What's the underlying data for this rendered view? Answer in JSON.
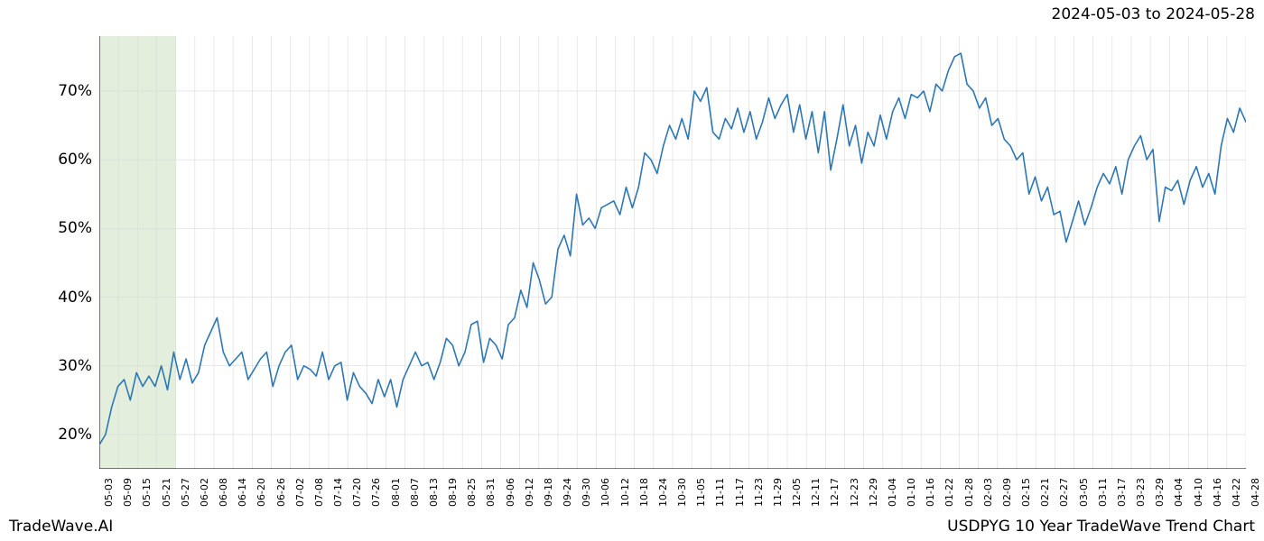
{
  "header": {
    "date_range": "2024-05-03 to 2024-05-28"
  },
  "footer": {
    "left": "TradeWave.AI",
    "right": "USDPYG 10 Year TradeWave Trend Chart"
  },
  "chart": {
    "type": "line",
    "background_color": "#ffffff",
    "grid_color": "#d9d9d9",
    "axis_color": "#000000",
    "line_color": "#2e77b4",
    "line_width": 1.6,
    "highlight_band": {
      "x_start_index": 0,
      "x_end_index": 4,
      "fill_color": "#e3efdc",
      "opacity": 1.0
    },
    "y_axis": {
      "min": 15,
      "max": 78,
      "ticks": [
        20,
        30,
        40,
        50,
        60,
        70
      ],
      "tick_labels": [
        "20%",
        "30%",
        "40%",
        "50%",
        "60%",
        "70%"
      ],
      "fontsize": 17
    },
    "x_axis": {
      "labels": [
        "05-03",
        "05-09",
        "05-15",
        "05-21",
        "05-27",
        "06-02",
        "06-08",
        "06-14",
        "06-20",
        "06-26",
        "07-02",
        "07-08",
        "07-14",
        "07-20",
        "07-26",
        "08-01",
        "08-07",
        "08-13",
        "08-19",
        "08-25",
        "08-31",
        "09-06",
        "09-12",
        "09-18",
        "09-24",
        "09-30",
        "10-06",
        "10-12",
        "10-18",
        "10-24",
        "10-30",
        "11-05",
        "11-11",
        "11-17",
        "11-23",
        "11-29",
        "12-05",
        "12-11",
        "12-17",
        "12-23",
        "12-29",
        "01-04",
        "01-10",
        "01-16",
        "01-22",
        "01-28",
        "02-03",
        "02-09",
        "02-15",
        "02-21",
        "02-27",
        "03-05",
        "03-11",
        "03-17",
        "03-23",
        "03-29",
        "04-04",
        "04-10",
        "04-16",
        "04-22",
        "04-28"
      ],
      "fontsize": 11,
      "rotation": -90
    },
    "series": {
      "name": "trend",
      "values": [
        18.5,
        20,
        24,
        27,
        28,
        25,
        29,
        27,
        28.5,
        27,
        30,
        26.5,
        32,
        28,
        31,
        27.5,
        29,
        33,
        35,
        37,
        32,
        30,
        31,
        32,
        28,
        29.5,
        31,
        32,
        27,
        30,
        32,
        33,
        28,
        30,
        29.5,
        28.5,
        32,
        28,
        30,
        30.5,
        25,
        29,
        27,
        26,
        24.5,
        28,
        25.5,
        28,
        24,
        28,
        30,
        32,
        30,
        30.5,
        28,
        30.5,
        34,
        33,
        30,
        32,
        36,
        36.5,
        30.5,
        34,
        33,
        31,
        36,
        37,
        41,
        38.5,
        45,
        42.5,
        39,
        40,
        47,
        49,
        46,
        55,
        50.5,
        51.5,
        50,
        53,
        53.5,
        54,
        52,
        56,
        53,
        56,
        61,
        60,
        58,
        62,
        65,
        63,
        66,
        63,
        70,
        68.5,
        70.5,
        64,
        63,
        66,
        64.5,
        67.5,
        64,
        67,
        63,
        65.5,
        69,
        66,
        68,
        69.5,
        64,
        68,
        63,
        67,
        61,
        67,
        58.5,
        63,
        68,
        62,
        65,
        59.5,
        64,
        62,
        66.5,
        63,
        67,
        69,
        66,
        69.5,
        69,
        70,
        67,
        71,
        70,
        73,
        75,
        75.5,
        71,
        70,
        67.5,
        69,
        65,
        66,
        63,
        62,
        60,
        61,
        55,
        57.5,
        54,
        56,
        52,
        52.5,
        48,
        51,
        54,
        50.5,
        53,
        56,
        58,
        56.5,
        59,
        55,
        60,
        62,
        63.5,
        60,
        61.5,
        51,
        56,
        55.5,
        57,
        53.5,
        57,
        59,
        56,
        58,
        55,
        62,
        66,
        64,
        67.5,
        65.5
      ]
    }
  }
}
